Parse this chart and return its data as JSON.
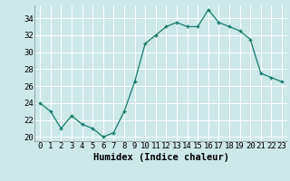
{
  "x": [
    0,
    1,
    2,
    3,
    4,
    5,
    6,
    7,
    8,
    9,
    10,
    11,
    12,
    13,
    14,
    15,
    16,
    17,
    18,
    19,
    20,
    21,
    22,
    23
  ],
  "y": [
    24,
    23,
    21,
    22.5,
    21.5,
    21,
    20,
    20.5,
    23,
    26.5,
    31,
    32,
    33,
    33.5,
    33,
    33,
    35,
    33.5,
    33,
    32.5,
    31.5,
    27.5,
    27,
    26.5
  ],
  "line_color": "#1a7a6e",
  "marker_color": "#1a7a6e",
  "bg_color": "#cce8e8",
  "grid_color": "#ffffff",
  "xlabel": "Humidex (Indice chaleur)",
  "xlabel_fontsize": 7.5,
  "tick_fontsize": 6.5,
  "ylim": [
    19.5,
    35.5
  ],
  "xlim": [
    -0.5,
    23.5
  ],
  "yticks": [
    20,
    22,
    24,
    26,
    28,
    30,
    32,
    34
  ],
  "xticks": [
    0,
    1,
    2,
    3,
    4,
    5,
    6,
    7,
    8,
    9,
    10,
    11,
    12,
    13,
    14,
    15,
    16,
    17,
    18,
    19,
    20,
    21,
    22,
    23
  ]
}
